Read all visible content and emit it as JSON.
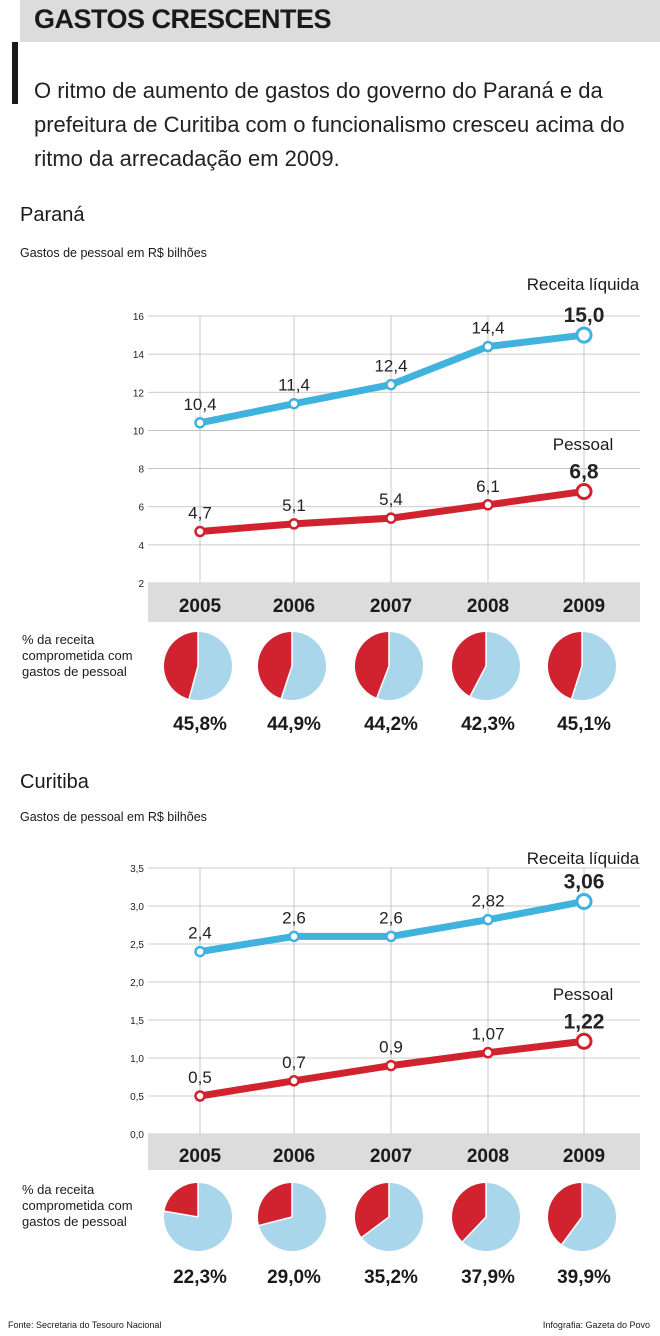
{
  "header": {
    "title": "GASTOS CRESCENTES",
    "lead": "O ritmo de aumento de gastos do governo do Paraná e da prefeitura de Curitiba com o funcionalismo cresceu acima do ritmo da arrecadação em 2009."
  },
  "parana": {
    "title": "Paraná",
    "subtitle": "Gastos de pessoal em R$ bilhões",
    "pct_label": "% da receita comprometida com gastos de pessoal"
  },
  "curitiba": {
    "title": "Curitiba",
    "subtitle": "Gastos de pessoal em R$ bilhões",
    "pct_label": "% da receita comprometida com gastos de pessoal"
  },
  "footer": {
    "source": "Fonte: Secretaria do Tesouro Nacional",
    "credit": "Infografia: Gazeta do Povo"
  },
  "colors": {
    "receita": "#3fb2de",
    "pessoal": "#d0232f",
    "pie_light": "#a9d6ea",
    "band": "#dcdcdc",
    "grid": "#bbbbbb"
  },
  "chart_data": [
    {
      "id": "parana",
      "type": "line",
      "title": "Paraná",
      "ylabel": "Gastos de pessoal em R$ bilhões",
      "ylim": [
        2,
        16
      ],
      "yticks": [
        "2",
        "4",
        "6",
        "8",
        "10",
        "12",
        "14",
        "16"
      ],
      "categories": [
        "2005",
        "2006",
        "2007",
        "2008",
        "2009"
      ],
      "series": [
        {
          "name": "Receita líquida",
          "values": [
            10.4,
            11.4,
            12.4,
            14.4,
            15.0
          ],
          "labels": [
            "10,4",
            "11,4",
            "12,4",
            "14,4",
            "15,0"
          ]
        },
        {
          "name": "Pessoal",
          "values": [
            4.7,
            5.1,
            5.4,
            6.1,
            6.8
          ],
          "labels": [
            "4,7",
            "5,1",
            "5,4",
            "6,1",
            "6,8"
          ]
        }
      ],
      "pies": {
        "label": "% da receita comprometida com gastos de pessoal",
        "values": [
          45.8,
          44.9,
          44.2,
          42.3,
          45.1
        ],
        "labels": [
          "45,8%",
          "44,9%",
          "44,2%",
          "42,3%",
          "45,1%"
        ]
      }
    },
    {
      "id": "curitiba",
      "type": "line",
      "title": "Curitiba",
      "ylabel": "Gastos de pessoal em R$ bilhões",
      "ylim": [
        0,
        3.5
      ],
      "yticks": [
        "0,0",
        "0,5",
        "1,0",
        "1,5",
        "2,0",
        "2,5",
        "3,0",
        "3,5"
      ],
      "categories": [
        "2005",
        "2006",
        "2007",
        "2008",
        "2009"
      ],
      "series": [
        {
          "name": "Receita líquida",
          "values": [
            2.4,
            2.6,
            2.6,
            2.82,
            3.06
          ],
          "labels": [
            "2,4",
            "2,6",
            "2,6",
            "2,82",
            "3,06"
          ]
        },
        {
          "name": "Pessoal",
          "values": [
            0.5,
            0.7,
            0.9,
            1.07,
            1.22
          ],
          "labels": [
            "0,5",
            "0,7",
            "0,9",
            "1,07",
            "1,22"
          ]
        }
      ],
      "pies": {
        "label": "% da receita comprometida com gastos de pessoal",
        "values": [
          22.3,
          29.0,
          35.2,
          37.9,
          39.9
        ],
        "labels": [
          "22,3%",
          "29,0%",
          "35,2%",
          "37,9%",
          "39,9%"
        ]
      }
    }
  ]
}
